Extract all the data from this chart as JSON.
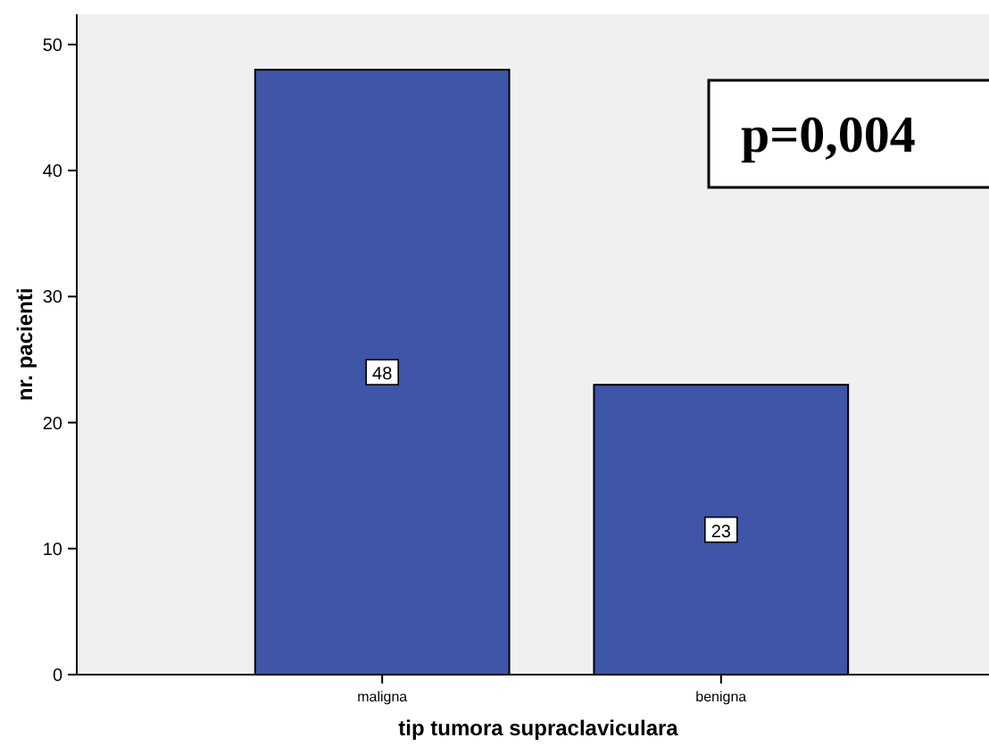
{
  "chart_data": {
    "type": "bar",
    "xlabel": "tip tumora supraclaviculara",
    "ylabel": "nr. pacienti",
    "categories": [
      "maligna",
      "benigna"
    ],
    "values": [
      48,
      23
    ],
    "color": "#3e55a8",
    "ylim": [
      0,
      52.4
    ],
    "yticks": [
      0,
      10,
      20,
      30,
      40,
      50
    ],
    "grid": false,
    "data_labels": true,
    "annotations": [
      "p=0,004"
    ]
  }
}
